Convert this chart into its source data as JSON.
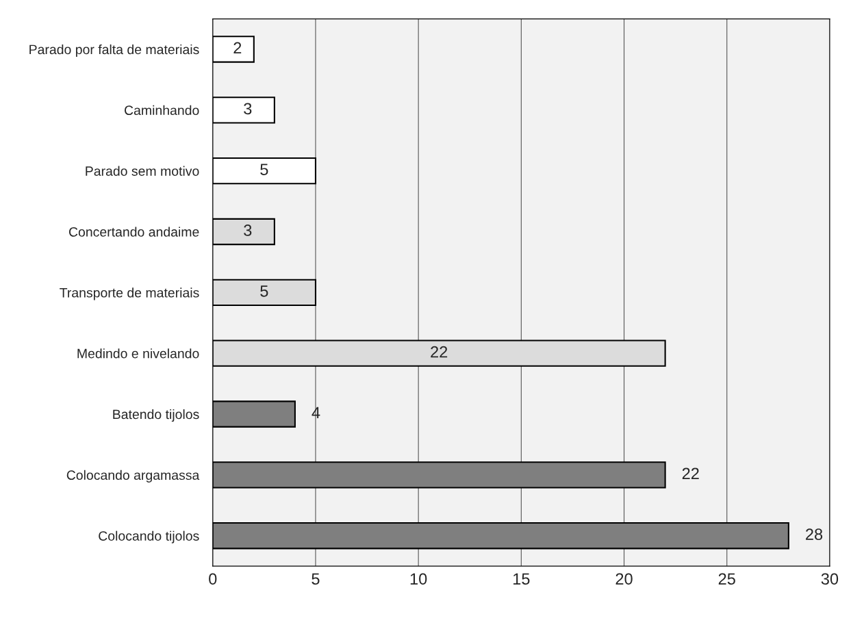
{
  "chart_data": {
    "type": "bar",
    "orientation": "horizontal",
    "categories": [
      "Parado por falta de materiais",
      "Caminhando",
      "Parado sem motivo",
      "Concertando andaime",
      "Transporte de materiais",
      "Medindo e nivelando",
      "Batendo tijolos",
      "Colocando argamassa",
      "Colocando tijolos"
    ],
    "values": [
      2,
      3,
      5,
      3,
      5,
      22,
      4,
      22,
      28
    ],
    "colors": [
      "#ffffff",
      "#ffffff",
      "#ffffff",
      "#dcdcdc",
      "#dcdcdc",
      "#dcdcdc",
      "#7f7f7f",
      "#7f7f7f",
      "#7f7f7f"
    ],
    "xlim": [
      0,
      30
    ],
    "xticks": [
      0,
      5,
      10,
      15,
      20,
      25,
      30
    ],
    "grid": "x",
    "data_labels": true
  }
}
